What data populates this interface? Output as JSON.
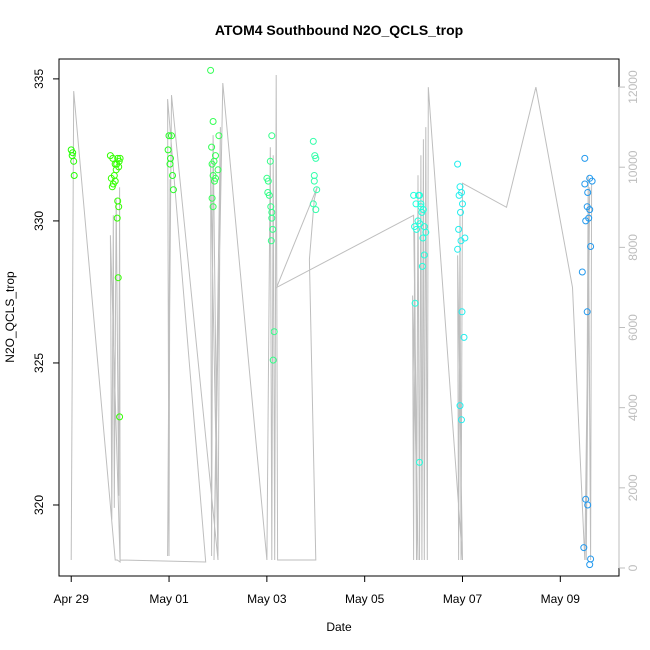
{
  "chart_data": {
    "type": "scatter",
    "title": "ATOM4 Southbound N2O_QCLS_trop",
    "xlabel": "Date",
    "ylabel": "N2O_QCLS_trop",
    "xlim": [
      -0.25,
      11.2
    ],
    "ylim": [
      317.5,
      335.7
    ],
    "y2lim": [
      -200,
      12700
    ],
    "x_ticks": [
      {
        "value": 0,
        "label": "Apr 29"
      },
      {
        "value": 2,
        "label": "May 01"
      },
      {
        "value": 4,
        "label": "May 03"
      },
      {
        "value": 6,
        "label": "May 05"
      },
      {
        "value": 8,
        "label": "May 07"
      },
      {
        "value": 10,
        "label": "May 09"
      }
    ],
    "y_ticks": [
      320,
      325,
      330,
      335
    ],
    "y2_ticks": [
      0,
      2000,
      4000,
      6000,
      8000,
      10000,
      12000
    ],
    "grid": false,
    "legend": "none",
    "series": [
      {
        "role": "altitude",
        "axis": "right",
        "color": "#bebebe",
        "x": [
          0.0,
          0.05,
          0.9,
          0.94,
          1.0,
          0.8,
          0.83,
          0.86,
          0.88,
          0.92,
          0.97,
          0.99,
          1.0,
          2.75,
          1.97,
          2.0,
          2.02,
          1.97,
          2.05,
          3.0,
          2.85,
          2.87,
          2.9,
          3.0,
          3.05,
          2.92,
          3.1,
          4.0,
          4.07,
          4.1,
          4.13,
          4.16,
          4.19,
          4.22,
          5.0,
          4.87,
          4.97,
          5.03,
          4.2,
          7.0,
          7.09,
          6.98,
          7.0,
          7.02,
          7.06,
          7.09,
          7.12,
          7.15,
          7.17,
          7.2,
          7.22,
          7.25,
          7.28,
          7.3,
          8.0,
          7.9,
          7.92,
          7.95,
          7.97,
          8.0,
          8.9,
          9.5,
          10.25,
          10.5,
          10.6,
          10.53,
          10.57,
          10.62,
          10.64
        ],
        "y": [
          200,
          11900,
          200,
          200,
          150,
          8300,
          1200,
          8800,
          1500,
          9200,
          1800,
          9500,
          200,
          150,
          11700,
          300,
          9700,
          300,
          11800,
          200,
          10100,
          300,
          10800,
          300,
          11000,
          200,
          12100,
          200,
          10500,
          200,
          10300,
          200,
          12300,
          200,
          200,
          7700,
          9200,
          9500,
          7000,
          8800,
          200,
          6800,
          200,
          8400,
          200,
          9800,
          200,
          10300,
          200,
          10700,
          200,
          11000,
          200,
          12000,
          200,
          7800,
          200,
          8800,
          200,
          9600,
          9000,
          12000,
          7000,
          200,
          9500,
          200,
          9800,
          200,
          9600
        ]
      },
      {
        "role": "n2o",
        "axis": "left",
        "points": [
          [
            0.0,
            332.5,
            "#22ff00"
          ],
          [
            0.02,
            332.3,
            "#22ff00"
          ],
          [
            0.05,
            332.1,
            "#22ff00"
          ],
          [
            0.03,
            332.4,
            "#22ff00"
          ],
          [
            0.06,
            331.6,
            "#22ff00"
          ],
          [
            0.8,
            332.3,
            "#33ff00"
          ],
          [
            0.85,
            332.2,
            "#33ff00"
          ],
          [
            0.9,
            332.0,
            "#33ff00"
          ],
          [
            0.92,
            331.8,
            "#33ff00"
          ],
          [
            0.88,
            331.6,
            "#33ff00"
          ],
          [
            0.95,
            332.2,
            "#33ff00"
          ],
          [
            0.97,
            331.9,
            "#33ff00"
          ],
          [
            0.82,
            331.5,
            "#33ff00"
          ],
          [
            0.84,
            331.2,
            "#33ff00"
          ],
          [
            0.86,
            331.3,
            "#33ff00"
          ],
          [
            0.9,
            331.4,
            "#33ff00"
          ],
          [
            0.93,
            332.0,
            "#33ff00"
          ],
          [
            0.98,
            332.1,
            "#33ff00"
          ],
          [
            1.0,
            332.2,
            "#33ff00"
          ],
          [
            0.95,
            330.7,
            "#33ff00"
          ],
          [
            0.97,
            330.5,
            "#33ff00"
          ],
          [
            0.94,
            330.1,
            "#33ff00"
          ],
          [
            0.96,
            328.0,
            "#33ff00"
          ],
          [
            0.99,
            323.1,
            "#33ff00"
          ],
          [
            2.0,
            333.0,
            "#22ff22"
          ],
          [
            2.05,
            333.0,
            "#22ff22"
          ],
          [
            1.98,
            332.5,
            "#22ff22"
          ],
          [
            2.03,
            332.2,
            "#22ff22"
          ],
          [
            2.02,
            332.0,
            "#22ff22"
          ],
          [
            2.07,
            331.6,
            "#22ff22"
          ],
          [
            2.09,
            331.1,
            "#22ff22"
          ],
          [
            2.85,
            335.3,
            "#33ff55"
          ],
          [
            2.9,
            333.5,
            "#33ff55"
          ],
          [
            2.87,
            332.6,
            "#33ff55"
          ],
          [
            2.95,
            332.3,
            "#33ff55"
          ],
          [
            2.92,
            332.1,
            "#33ff55"
          ],
          [
            2.88,
            332.0,
            "#33ff55"
          ],
          [
            3.0,
            331.8,
            "#33ff55"
          ],
          [
            2.9,
            331.6,
            "#33ff55"
          ],
          [
            2.93,
            331.4,
            "#33ff55"
          ],
          [
            2.95,
            331.5,
            "#33ff55"
          ],
          [
            3.02,
            333.0,
            "#33ff55"
          ],
          [
            2.88,
            330.8,
            "#33ff55"
          ],
          [
            2.9,
            330.5,
            "#33ff55"
          ],
          [
            4.0,
            331.5,
            "#33ff88"
          ],
          [
            4.03,
            331.4,
            "#33ff88"
          ],
          [
            4.1,
            333.0,
            "#33ff88"
          ],
          [
            4.07,
            332.1,
            "#33ff88"
          ],
          [
            4.02,
            331.0,
            "#33ff88"
          ],
          [
            4.05,
            330.9,
            "#33ff88"
          ],
          [
            4.08,
            330.5,
            "#33ff88"
          ],
          [
            4.1,
            330.1,
            "#33ff88"
          ],
          [
            4.12,
            329.7,
            "#33ff88"
          ],
          [
            4.09,
            329.3,
            "#33ff88"
          ],
          [
            4.15,
            326.1,
            "#33ff88"
          ],
          [
            4.13,
            325.1,
            "#33ff88"
          ],
          [
            4.1,
            330.3,
            "#33ff88"
          ],
          [
            4.95,
            332.8,
            "#33ffaa"
          ],
          [
            4.98,
            332.3,
            "#33ffaa"
          ],
          [
            5.0,
            332.2,
            "#33ffaa"
          ],
          [
            4.97,
            331.6,
            "#33ffaa"
          ],
          [
            5.02,
            331.1,
            "#33ffaa"
          ],
          [
            4.95,
            330.6,
            "#33ffaa"
          ],
          [
            5.0,
            330.4,
            "#33ffaa"
          ],
          [
            4.97,
            331.4,
            "#33ffaa"
          ],
          [
            7.0,
            330.9,
            "#22ffdd"
          ],
          [
            7.05,
            330.6,
            "#22ffdd"
          ],
          [
            7.1,
            330.9,
            "#22ffdd"
          ],
          [
            7.15,
            330.6,
            "#22ffdd"
          ],
          [
            7.12,
            330.9,
            "#22ffdd"
          ],
          [
            7.02,
            329.8,
            "#22ffdd"
          ],
          [
            7.06,
            329.7,
            "#22ffdd"
          ],
          [
            7.09,
            330.0,
            "#22ffdd"
          ],
          [
            7.13,
            329.9,
            "#22ffdd"
          ],
          [
            7.17,
            330.3,
            "#22ffdd"
          ],
          [
            7.2,
            330.4,
            "#22ffdd"
          ],
          [
            7.22,
            329.8,
            "#22ffdd"
          ],
          [
            7.25,
            329.6,
            "#22ffdd"
          ],
          [
            7.18,
            328.4,
            "#22ffdd"
          ],
          [
            7.22,
            328.8,
            "#22ffdd"
          ],
          [
            7.03,
            327.1,
            "#22ffdd"
          ],
          [
            7.12,
            321.5,
            "#22ffdd"
          ],
          [
            7.15,
            330.5,
            "#22ffdd"
          ],
          [
            7.19,
            329.4,
            "#22ffdd"
          ],
          [
            7.9,
            332.0,
            "#22eeee"
          ],
          [
            7.95,
            331.2,
            "#22eeee"
          ],
          [
            7.98,
            331.0,
            "#22eeee"
          ],
          [
            7.93,
            330.9,
            "#22eeee"
          ],
          [
            7.96,
            330.3,
            "#22eeee"
          ],
          [
            8.0,
            330.6,
            "#22eeee"
          ],
          [
            7.92,
            329.7,
            "#22eeee"
          ],
          [
            7.97,
            329.3,
            "#22eeee"
          ],
          [
            8.05,
            329.4,
            "#22eeee"
          ],
          [
            7.99,
            326.8,
            "#22eeee"
          ],
          [
            8.03,
            325.9,
            "#22eeee"
          ],
          [
            7.95,
            323.5,
            "#22eeee"
          ],
          [
            7.98,
            323.0,
            "#22eeee"
          ],
          [
            7.9,
            329.0,
            "#22eeee"
          ],
          [
            10.5,
            332.2,
            "#2299ee"
          ],
          [
            10.6,
            331.5,
            "#2299ee"
          ],
          [
            10.65,
            331.4,
            "#2299ee"
          ],
          [
            10.5,
            331.3,
            "#2299ee"
          ],
          [
            10.56,
            331.0,
            "#2299ee"
          ],
          [
            10.6,
            330.4,
            "#2299ee"
          ],
          [
            10.55,
            330.5,
            "#2299ee"
          ],
          [
            10.58,
            330.1,
            "#2299ee"
          ],
          [
            10.52,
            330.0,
            "#2299ee"
          ],
          [
            10.62,
            329.1,
            "#2299ee"
          ],
          [
            10.45,
            328.2,
            "#2299ee"
          ],
          [
            10.55,
            326.8,
            "#2299ee"
          ],
          [
            10.52,
            320.2,
            "#2299ee"
          ],
          [
            10.56,
            320.0,
            "#2299ee"
          ],
          [
            10.48,
            318.5,
            "#2299ee"
          ],
          [
            10.6,
            317.9,
            "#2299ee"
          ],
          [
            10.62,
            318.1,
            "#2299ee"
          ]
        ]
      }
    ]
  }
}
